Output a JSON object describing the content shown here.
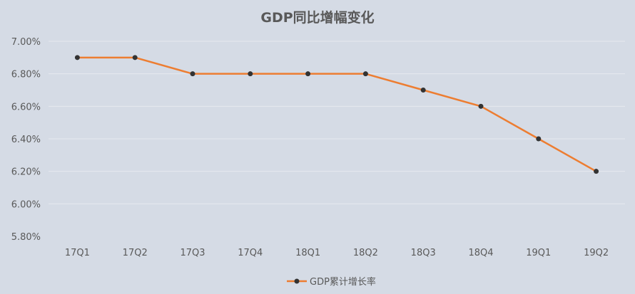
{
  "chart_data": {
    "type": "line",
    "title": "GDP同比增幅变化",
    "categories": [
      "17Q1",
      "17Q2",
      "17Q3",
      "17Q4",
      "18Q1",
      "18Q2",
      "18Q3",
      "18Q4",
      "19Q1",
      "19Q2"
    ],
    "series": [
      {
        "name": "GDP累计增长率",
        "values": [
          6.9,
          6.9,
          6.8,
          6.8,
          6.8,
          6.8,
          6.7,
          6.6,
          6.4,
          6.2
        ],
        "color": "#ed7d31",
        "marker_color": "#333333"
      }
    ],
    "y_ticks": [
      "7.00%",
      "6.80%",
      "6.60%",
      "6.40%",
      "6.20%",
      "6.00%",
      "5.80%"
    ],
    "ylim": [
      5.8,
      7.0
    ],
    "grid": true,
    "legend_position": "bottom"
  }
}
